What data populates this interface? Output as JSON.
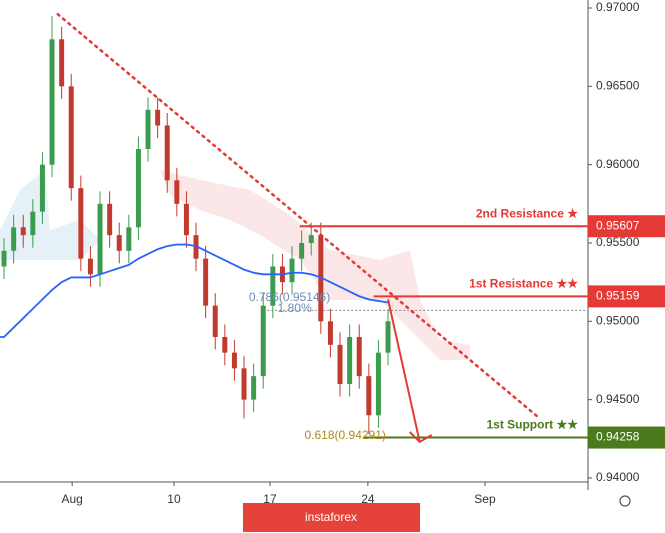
{
  "chart_data": {
    "type": "candlestick",
    "up_color": "#3d9b4f",
    "down_color": "#c23a2e",
    "candles": [
      [
        0.9535,
        0.9553,
        0.9527,
        0.9545
      ],
      [
        0.9545,
        0.9568,
        0.9537,
        0.956
      ],
      [
        0.956,
        0.9568,
        0.9547,
        0.9555
      ],
      [
        0.9555,
        0.9578,
        0.9547,
        0.957
      ],
      [
        0.957,
        0.9608,
        0.9562,
        0.96
      ],
      [
        0.96,
        0.9695,
        0.9592,
        0.968
      ],
      [
        0.968,
        0.9688,
        0.9642,
        0.965
      ],
      [
        0.965,
        0.9658,
        0.9577,
        0.9585
      ],
      [
        0.9585,
        0.9593,
        0.9532,
        0.954
      ],
      [
        0.954,
        0.9548,
        0.9522,
        0.953
      ],
      [
        0.953,
        0.9583,
        0.9522,
        0.9575
      ],
      [
        0.9575,
        0.9583,
        0.9547,
        0.9555
      ],
      [
        0.9555,
        0.9563,
        0.9537,
        0.9545
      ],
      [
        0.9545,
        0.9568,
        0.9537,
        0.956
      ],
      [
        0.956,
        0.9618,
        0.9552,
        0.961
      ],
      [
        0.961,
        0.9643,
        0.9602,
        0.9635
      ],
      [
        0.9635,
        0.9643,
        0.9617,
        0.9625
      ],
      [
        0.9625,
        0.9633,
        0.9582,
        0.959
      ],
      [
        0.959,
        0.9598,
        0.9567,
        0.9575
      ],
      [
        0.9575,
        0.9583,
        0.9547,
        0.9555
      ],
      [
        0.9555,
        0.9563,
        0.9532,
        0.954
      ],
      [
        0.954,
        0.9548,
        0.9502,
        0.951
      ],
      [
        0.951,
        0.9518,
        0.9482,
        0.949
      ],
      [
        0.949,
        0.9498,
        0.9472,
        0.948
      ],
      [
        0.948,
        0.9488,
        0.9462,
        0.947
      ],
      [
        0.947,
        0.9478,
        0.9438,
        0.945
      ],
      [
        0.945,
        0.9473,
        0.9442,
        0.9465
      ],
      [
        0.9465,
        0.9518,
        0.9457,
        0.951
      ],
      [
        0.951,
        0.9543,
        0.9502,
        0.9535
      ],
      [
        0.9535,
        0.9543,
        0.9517,
        0.9525
      ],
      [
        0.9525,
        0.9548,
        0.9517,
        0.954
      ],
      [
        0.954,
        0.9558,
        0.9532,
        0.955
      ],
      [
        0.955,
        0.9563,
        0.9542,
        0.9555
      ],
      [
        0.9555,
        0.9563,
        0.9492,
        0.95
      ],
      [
        0.95,
        0.9508,
        0.9477,
        0.9485
      ],
      [
        0.9485,
        0.9493,
        0.9452,
        0.946
      ],
      [
        0.946,
        0.9498,
        0.9452,
        0.949
      ],
      [
        0.949,
        0.9498,
        0.9457,
        0.9465
      ],
      [
        0.9465,
        0.9473,
        0.9428,
        0.944
      ],
      [
        0.944,
        0.9488,
        0.9432,
        0.948
      ],
      [
        0.948,
        0.9508,
        0.9472,
        0.95
      ]
    ],
    "ma": {
      "color": "#2962ff",
      "values": [
        0.949,
        0.9496,
        0.9502,
        0.9508,
        0.9514,
        0.952,
        0.9525,
        0.9528,
        0.9528,
        0.9528,
        0.953,
        0.9532,
        0.9534,
        0.9536,
        0.954,
        0.9543,
        0.9546,
        0.9548,
        0.9549,
        0.9549,
        0.9548,
        0.9545,
        0.9542,
        0.9539,
        0.9536,
        0.9533,
        0.9531,
        0.953,
        0.953,
        0.953,
        0.9531,
        0.9531,
        0.953,
        0.9528,
        0.9525,
        0.9522,
        0.9519,
        0.9516,
        0.9514,
        0.9513,
        0.9512
      ]
    },
    "xlim": [
      -0.42,
      60.83
    ],
    "xticks": [
      {
        "value": 7.1,
        "label": "Aug"
      },
      {
        "value": 17.7,
        "label": "10"
      },
      {
        "value": 27.7,
        "label": "17"
      },
      {
        "value": 37.9,
        "label": "24"
      },
      {
        "value": 50.1,
        "label": "Sep"
      }
    ],
    "ylim": [
      0.93987,
      0.97051
    ],
    "yticks": [
      {
        "value": 0.94,
        "label": "0.94000"
      },
      {
        "value": 0.945,
        "label": "0.94500"
      },
      {
        "value": 0.95,
        "label": "0.95000"
      },
      {
        "value": 0.955,
        "label": "0.95500"
      },
      {
        "value": 0.96,
        "label": "0.96000"
      },
      {
        "value": 0.965,
        "label": "0.96500"
      },
      {
        "value": 0.97,
        "label": "0.97000"
      }
    ],
    "trendline": {
      "color": "#e53935",
      "x": [
        5.6,
        55.8
      ],
      "y": [
        0.9696,
        0.9438
      ]
    },
    "levels": [
      {
        "label": "2nd Resistance ★",
        "value": 0.95607,
        "color": "#e53935",
        "x_start": 30.8
      },
      {
        "label": "1st Resistance ★★",
        "value": 0.95159,
        "color": "#e53935",
        "x_start": 38.5
      },
      {
        "label": "1st Support ★★",
        "value": 0.94258,
        "color": "#4a7a1c",
        "x_start": 37.5
      }
    ],
    "dotted_level": {
      "value": 0.9507,
      "x_start": 27
    },
    "arrow": {
      "color": "#e53935",
      "x": [
        40,
        43.3
      ],
      "y": [
        0.9514,
        0.9423
      ]
    },
    "annotations": [
      {
        "text": "0.786(0.95146)",
        "x": 25.5,
        "y": 0.9515,
        "color": "#6a8fb5"
      },
      {
        "text": "1.80%",
        "x": 28.5,
        "y": 0.9508,
        "color": "#6a8fb5"
      },
      {
        "text": "0.618(0.94291)",
        "x": 31.3,
        "y": 0.9427,
        "color": "#b08a1e"
      }
    ],
    "watermark": "instaforex"
  }
}
